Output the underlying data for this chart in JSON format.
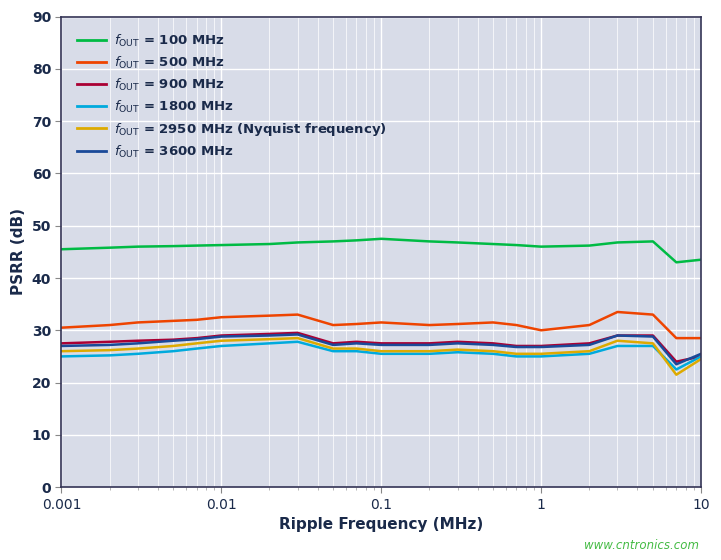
{
  "xlabel": "Ripple Frequency (MHz)",
  "ylabel": "PSRR (dB)",
  "xlim": [
    0.001,
    10
  ],
  "ylim": [
    0,
    90
  ],
  "yticks": [
    0,
    10,
    20,
    30,
    40,
    50,
    60,
    70,
    80,
    90
  ],
  "plot_bg": "#d8dce8",
  "fig_bg": "#ffffff",
  "grid_color": "#ffffff",
  "watermark": "www.cntronics.com",
  "watermark_color": "#44bb44",
  "text_color": "#1a2a4a",
  "series": [
    {
      "label": "= 100 MHz",
      "color": "#00bb44",
      "linewidth": 1.8,
      "x": [
        0.001,
        0.002,
        0.003,
        0.005,
        0.007,
        0.01,
        0.02,
        0.03,
        0.05,
        0.07,
        0.1,
        0.2,
        0.3,
        0.5,
        0.7,
        1.0,
        2.0,
        3.0,
        5.0,
        7.0,
        10.0
      ],
      "y": [
        45.5,
        45.8,
        46.0,
        46.1,
        46.2,
        46.3,
        46.5,
        46.8,
        47.0,
        47.2,
        47.5,
        47.0,
        46.8,
        46.5,
        46.3,
        46.0,
        46.2,
        46.8,
        47.0,
        43.0,
        43.5
      ]
    },
    {
      "label": "= 500 MHz",
      "color": "#ee4400",
      "linewidth": 1.8,
      "x": [
        0.001,
        0.002,
        0.003,
        0.005,
        0.007,
        0.01,
        0.02,
        0.03,
        0.05,
        0.07,
        0.1,
        0.2,
        0.3,
        0.5,
        0.7,
        1.0,
        2.0,
        3.0,
        5.0,
        7.0,
        10.0
      ],
      "y": [
        30.5,
        31.0,
        31.5,
        31.8,
        32.0,
        32.5,
        32.8,
        33.0,
        31.0,
        31.2,
        31.5,
        31.0,
        31.2,
        31.5,
        31.0,
        30.0,
        31.0,
        33.5,
        33.0,
        28.5,
        28.5
      ]
    },
    {
      "label": "= 900 MHz",
      "color": "#aa0033",
      "linewidth": 1.8,
      "x": [
        0.001,
        0.002,
        0.003,
        0.005,
        0.007,
        0.01,
        0.02,
        0.03,
        0.05,
        0.07,
        0.1,
        0.2,
        0.3,
        0.5,
        0.7,
        1.0,
        2.0,
        3.0,
        5.0,
        7.0,
        10.0
      ],
      "y": [
        27.5,
        27.8,
        28.0,
        28.2,
        28.5,
        29.0,
        29.3,
        29.5,
        27.5,
        27.8,
        27.5,
        27.5,
        27.8,
        27.5,
        27.0,
        27.0,
        27.5,
        29.0,
        29.0,
        24.0,
        25.0
      ]
    },
    {
      "label": "= 1800 MHz",
      "color": "#00aadd",
      "linewidth": 1.8,
      "x": [
        0.001,
        0.002,
        0.003,
        0.005,
        0.007,
        0.01,
        0.02,
        0.03,
        0.05,
        0.07,
        0.1,
        0.2,
        0.3,
        0.5,
        0.7,
        1.0,
        2.0,
        3.0,
        5.0,
        7.0,
        10.0
      ],
      "y": [
        25.0,
        25.2,
        25.5,
        26.0,
        26.5,
        27.0,
        27.5,
        27.8,
        26.0,
        26.0,
        25.5,
        25.5,
        25.8,
        25.5,
        25.0,
        25.0,
        25.5,
        27.0,
        27.0,
        22.5,
        25.0
      ]
    },
    {
      "label": "= 2950 MHz (Nyquist frequency)",
      "color": "#ddaa00",
      "linewidth": 1.8,
      "x": [
        0.001,
        0.002,
        0.003,
        0.005,
        0.007,
        0.01,
        0.02,
        0.03,
        0.05,
        0.07,
        0.1,
        0.2,
        0.3,
        0.5,
        0.7,
        1.0,
        2.0,
        3.0,
        5.0,
        7.0,
        10.0
      ],
      "y": [
        26.0,
        26.2,
        26.5,
        27.0,
        27.5,
        28.0,
        28.3,
        28.5,
        26.5,
        26.5,
        26.0,
        26.0,
        26.3,
        26.0,
        25.5,
        25.5,
        26.0,
        28.0,
        27.5,
        21.5,
        24.5
      ]
    },
    {
      "label": "= 3600 MHz",
      "color": "#1a4a99",
      "linewidth": 1.8,
      "x": [
        0.001,
        0.002,
        0.003,
        0.005,
        0.007,
        0.01,
        0.02,
        0.03,
        0.05,
        0.07,
        0.1,
        0.2,
        0.3,
        0.5,
        0.7,
        1.0,
        2.0,
        3.0,
        5.0,
        7.0,
        10.0
      ],
      "y": [
        27.0,
        27.2,
        27.5,
        28.0,
        28.3,
        28.8,
        29.0,
        29.2,
        27.2,
        27.5,
        27.2,
        27.2,
        27.5,
        27.2,
        26.8,
        26.8,
        27.2,
        29.0,
        28.8,
        23.5,
        25.5
      ]
    }
  ]
}
